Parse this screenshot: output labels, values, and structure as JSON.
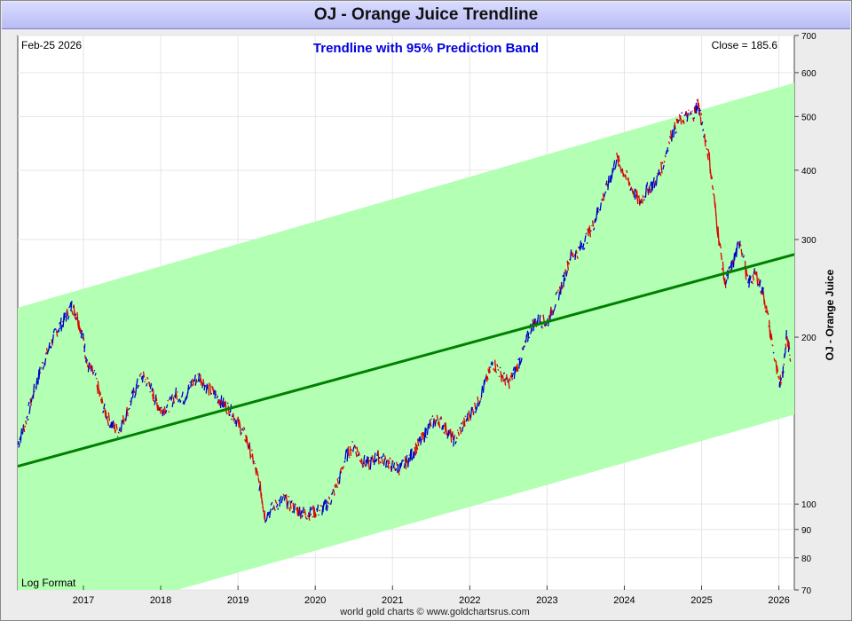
{
  "title": "OJ  -  Orange Juice Trendline",
  "footer": "world gold charts © www.goldchartsrus.com",
  "chart_data": {
    "type": "line",
    "title": "Trendline with 95% Prediction Band",
    "date_label": "Feb-25  2026",
    "close_label": "Close = 185.6",
    "scale_label": "Log Format",
    "ylabel": "OJ  -  Orange Juice",
    "yscale": "log",
    "xlim": [
      2016.15,
      2026.2
    ],
    "ylim": [
      70,
      700
    ],
    "x_ticks": [
      "2017",
      "2018",
      "2019",
      "2020",
      "2021",
      "2022",
      "2023",
      "2024",
      "2025",
      "2026"
    ],
    "y_ticks": [
      70,
      80,
      90,
      100,
      200,
      300,
      400,
      500,
      600,
      700
    ],
    "colors": {
      "band": "#b3ffb3",
      "trend": "#008000",
      "price_up": "#0000cc",
      "price_down": "#dd0000",
      "title": "#0000dd"
    },
    "trendline": {
      "x": [
        2016.15,
        2026.2
      ],
      "y": [
        117,
        282
      ]
    },
    "band_upper": {
      "x": [
        2016.15,
        2026.2
      ],
      "y": [
        226,
        575
      ]
    },
    "band_lower": {
      "x": [
        2016.15,
        2026.2
      ],
      "y": [
        58,
        145
      ]
    },
    "series": [
      {
        "values_x": [
          2016.15,
          2016.25,
          2016.35,
          2016.45,
          2016.55,
          2016.65,
          2016.75,
          2016.85,
          2016.92,
          2017.0,
          2017.05,
          2017.15,
          2017.25,
          2017.35,
          2017.45,
          2017.55,
          2017.65,
          2017.75,
          2017.85,
          2017.92,
          2018.0,
          2018.1,
          2018.2,
          2018.3,
          2018.4,
          2018.5,
          2018.6,
          2018.7,
          2018.8,
          2018.9,
          2019.0,
          2019.1,
          2019.2,
          2019.3,
          2019.35,
          2019.5,
          2019.6,
          2019.7,
          2019.8,
          2019.9,
          2020.0,
          2020.1,
          2020.2,
          2020.3,
          2020.4,
          2020.5,
          2020.6,
          2020.7,
          2020.8,
          2020.9,
          2021.0,
          2021.1,
          2021.2,
          2021.3,
          2021.4,
          2021.5,
          2021.6,
          2021.7,
          2021.8,
          2021.9,
          2022.0,
          2022.1,
          2022.2,
          2022.3,
          2022.4,
          2022.5,
          2022.6,
          2022.7,
          2022.8,
          2022.9,
          2023.0,
          2023.1,
          2023.2,
          2023.3,
          2023.4,
          2023.5,
          2023.6,
          2023.7,
          2023.8,
          2023.9,
          2024.0,
          2024.1,
          2024.2,
          2024.3,
          2024.4,
          2024.5,
          2024.6,
          2024.7,
          2024.8,
          2024.9,
          2024.95,
          2025.0,
          2025.1,
          2025.2,
          2025.3,
          2025.4,
          2025.5,
          2025.6,
          2025.7,
          2025.8,
          2025.9,
          2026.0,
          2026.05,
          2026.1,
          2026.15
        ],
        "values_y": [
          128,
          140,
          158,
          175,
          190,
          205,
          215,
          228,
          218,
          198,
          178,
          170,
          150,
          140,
          135,
          145,
          158,
          170,
          165,
          155,
          148,
          150,
          158,
          155,
          165,
          170,
          162,
          158,
          152,
          148,
          140,
          132,
          120,
          105,
          95,
          100,
          102,
          99,
          97,
          96,
          97,
          98,
          102,
          110,
          122,
          128,
          120,
          118,
          122,
          120,
          117,
          116,
          120,
          126,
          132,
          140,
          142,
          136,
          130,
          138,
          145,
          152,
          165,
          180,
          172,
          165,
          175,
          190,
          210,
          215,
          212,
          230,
          250,
          280,
          285,
          300,
          320,
          350,
          380,
          420,
          395,
          370,
          350,
          370,
          380,
          410,
          460,
          490,
          500,
          505,
          530,
          490,
          420,
          320,
          250,
          270,
          300,
          250,
          260,
          240,
          200,
          165,
          172,
          200,
          185.6
        ]
      }
    ]
  }
}
